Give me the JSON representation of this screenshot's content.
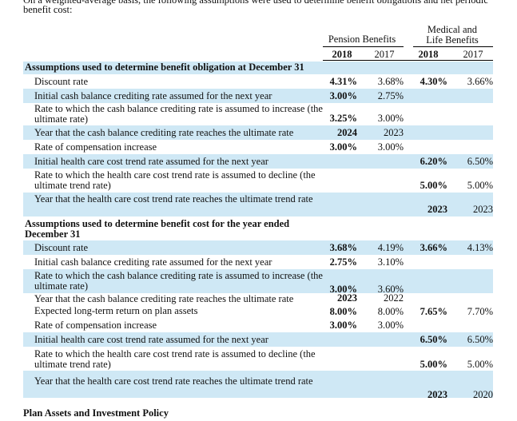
{
  "intro": {
    "top_line": "On a weighted-average basis, the following assumptions were used to determine benefit obligations and net periodic",
    "text": "benefit cost:"
  },
  "headers": {
    "pension": "Pension Benefits",
    "medical_line1": "Medical and",
    "medical_line2": "Life Benefits",
    "years": [
      "2018",
      "2017",
      "2018",
      "2017"
    ]
  },
  "rows": [
    {
      "type": "section",
      "label": "Assumptions used to determine benefit obligation at December 31",
      "values": [
        "",
        "",
        "",
        ""
      ]
    },
    {
      "type": "row",
      "label": "Discount rate",
      "values": [
        "4.31%",
        "3.68%",
        "4.30%",
        "3.66%"
      ]
    },
    {
      "type": "row",
      "label": "Initial cash balance crediting rate assumed for the next year",
      "values": [
        "3.00%",
        "2.75%",
        "",
        ""
      ]
    },
    {
      "type": "row",
      "label": "Rate to which the cash balance crediting rate is assumed to increase (the ultimate rate)",
      "values": [
        "3.25%",
        "3.00%",
        "",
        ""
      ]
    },
    {
      "type": "row",
      "label": "Year that the cash balance crediting rate reaches the ultimate rate",
      "values": [
        "2024",
        "2023",
        "",
        ""
      ]
    },
    {
      "type": "row",
      "label": "Rate of compensation increase",
      "values": [
        "3.00%",
        "3.00%",
        "",
        ""
      ]
    },
    {
      "type": "row",
      "label": "Initial health care cost trend rate assumed for the next year",
      "values": [
        "",
        "",
        "6.20%",
        "6.50%"
      ]
    },
    {
      "type": "row",
      "label": "Rate to which the health care cost trend rate is assumed to decline (the ultimate trend rate)",
      "values": [
        "",
        "",
        "5.00%",
        "5.00%"
      ]
    },
    {
      "type": "row",
      "label": "Year that the health care cost trend rate reaches the ultimate trend rate",
      "values": [
        "",
        "",
        "2023",
        "2023"
      ]
    },
    {
      "type": "section",
      "label": "Assumptions used to determine benefit cost for the year ended December 31",
      "values": [
        "",
        "",
        "",
        ""
      ]
    },
    {
      "type": "row",
      "label": "Discount rate",
      "values": [
        "3.68%",
        "4.19%",
        "3.66%",
        "4.13%"
      ]
    },
    {
      "type": "row",
      "label": "Initial cash balance crediting rate assumed for the next year",
      "values": [
        "2.75%",
        "3.10%",
        "",
        ""
      ]
    },
    {
      "type": "row",
      "label": "Rate to which the cash balance crediting rate is assumed to increase (the ultimate rate)",
      "values": [
        "3.00%",
        "3.60%",
        "",
        ""
      ]
    },
    {
      "type": "row",
      "label": "Year that the cash balance crediting rate reaches the ultimate rate",
      "values": [
        "2023",
        "2022",
        "",
        ""
      ]
    },
    {
      "type": "row",
      "label": "Expected long-term return on plan assets",
      "values": [
        "8.00%",
        "8.00%",
        "7.65%",
        "7.70%"
      ]
    },
    {
      "type": "row",
      "label": "Rate of compensation increase",
      "values": [
        "3.00%",
        "3.00%",
        "",
        ""
      ]
    },
    {
      "type": "row",
      "label": "Initial health care cost trend rate assumed for the next year",
      "values": [
        "",
        "",
        "6.50%",
        "6.50%"
      ]
    },
    {
      "type": "row",
      "label": "Rate to which the health care cost trend rate is assumed to decline (the ultimate trend rate)",
      "values": [
        "",
        "",
        "5.00%",
        "5.00%"
      ]
    },
    {
      "type": "row",
      "label": "Year that the health care cost trend rate reaches the ultimate trend rate",
      "values": [
        "",
        "",
        "2023",
        "2020"
      ]
    }
  ],
  "footer": "Plan Assets and Investment Policy",
  "colors": {
    "row_shade": "#cfe8f5",
    "text": "#111111"
  }
}
